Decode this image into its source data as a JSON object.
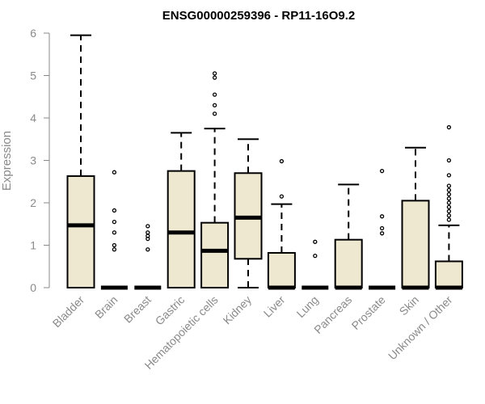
{
  "chart_data": {
    "type": "box",
    "title": "ENSG00000259396 - RP11-16O9.2",
    "xlabel": "",
    "ylabel": "Expression",
    "ylim": [
      0,
      6
    ],
    "yticks": [
      0,
      1,
      2,
      3,
      4,
      5,
      6
    ],
    "box_fill": "#efe8d0",
    "categories": [
      "Bladder",
      "Brain",
      "Breast",
      "Gastric",
      "Hematopoietic cells",
      "Kidney",
      "Liver",
      "Lung",
      "Pancreas",
      "Prostate",
      "Skin",
      "Unknown / Other"
    ],
    "boxes": [
      {
        "min": 0,
        "q1": 0,
        "median": 1.47,
        "q3": 2.63,
        "max": 5.95,
        "outliers": []
      },
      {
        "min": 0,
        "q1": 0,
        "median": 0,
        "q3": 0,
        "max": 0,
        "outliers": [
          0.9,
          1.0,
          1.3,
          1.55,
          1.82,
          2.72
        ]
      },
      {
        "min": 0,
        "q1": 0,
        "median": 0,
        "q3": 0,
        "max": 0,
        "outliers": [
          0.9,
          1.15,
          1.22,
          1.3,
          1.45
        ]
      },
      {
        "min": 0,
        "q1": 0,
        "median": 1.3,
        "q3": 2.75,
        "max": 3.65,
        "outliers": []
      },
      {
        "min": 0,
        "q1": 0,
        "median": 0.87,
        "q3": 1.53,
        "max": 3.75,
        "outliers": [
          4.1,
          4.3,
          4.55,
          4.95,
          5.05
        ]
      },
      {
        "min": 0,
        "q1": 0.68,
        "median": 1.65,
        "q3": 2.7,
        "max": 3.5,
        "outliers": []
      },
      {
        "min": 0,
        "q1": 0,
        "median": 0,
        "q3": 0.82,
        "max": 1.97,
        "outliers": [
          2.15,
          2.98
        ]
      },
      {
        "min": 0,
        "q1": 0,
        "median": 0,
        "q3": 0,
        "max": 0,
        "outliers": [
          0.75,
          1.08
        ]
      },
      {
        "min": 0,
        "q1": 0,
        "median": 0,
        "q3": 1.13,
        "max": 2.43,
        "outliers": []
      },
      {
        "min": 0,
        "q1": 0,
        "median": 0,
        "q3": 0,
        "max": 0,
        "outliers": [
          1.28,
          1.4,
          1.68,
          2.75
        ]
      },
      {
        "min": 0,
        "q1": 0,
        "median": 0,
        "q3": 2.05,
        "max": 3.3,
        "outliers": []
      },
      {
        "min": 0,
        "q1": 0,
        "median": 0,
        "q3": 0.62,
        "max": 1.47,
        "outliers": [
          1.6,
          1.7,
          1.8,
          1.9,
          2.0,
          2.1,
          2.2,
          2.3,
          2.4,
          2.65,
          3.0,
          3.78
        ]
      }
    ]
  }
}
